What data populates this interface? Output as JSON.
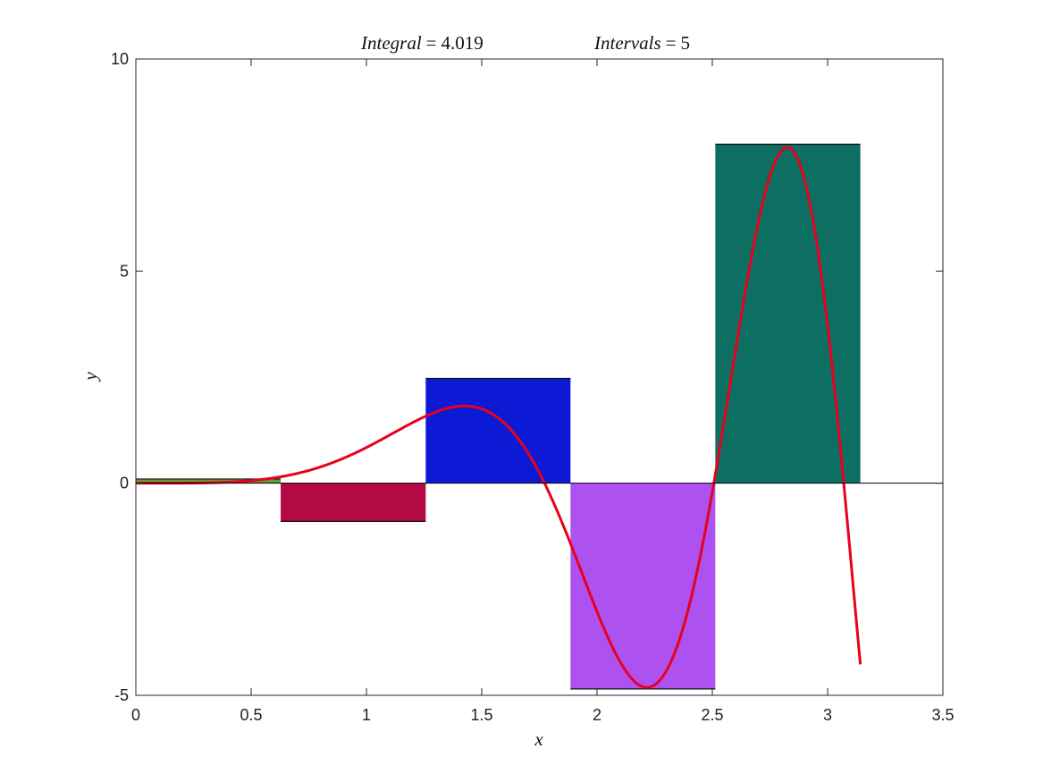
{
  "chart_data": {
    "type": "bar",
    "title_left": {
      "name": "Integral",
      "operator": "=",
      "value": "4.019"
    },
    "title_right": {
      "name": "Intervals",
      "operator": "=",
      "value": "5"
    },
    "xlabel": "x",
    "ylabel": "y",
    "xlim": [
      0,
      3.5
    ],
    "ylim": [
      -5,
      10
    ],
    "xticks": [
      0,
      0.5,
      1,
      1.5,
      2,
      2.5,
      3,
      3.5
    ],
    "xtick_labels": [
      "0",
      "0.5",
      "1",
      "1.5",
      "2",
      "2.5",
      "3",
      "3.5"
    ],
    "yticks": [
      -5,
      0,
      5,
      10
    ],
    "ytick_labels": [
      "-5",
      "0",
      "5",
      "10"
    ],
    "grid": false,
    "bars": [
      {
        "x0": 0.0,
        "x1": 0.628,
        "height": 0.1,
        "color": "#5c9e33"
      },
      {
        "x0": 0.628,
        "x1": 1.257,
        "height": -0.9,
        "color": "#b30a45"
      },
      {
        "x0": 1.257,
        "x1": 1.885,
        "height": 2.47,
        "color": "#0c1ad6"
      },
      {
        "x0": 1.885,
        "x1": 2.513,
        "height": -4.85,
        "color": "#ad52f0"
      },
      {
        "x0": 2.513,
        "x1": 3.142,
        "height": 7.99,
        "color": "#0d6e62"
      }
    ],
    "curve": {
      "color": "#e8001c",
      "formula": "x^2*sin(x^2)",
      "x_range": [
        0,
        3.142
      ]
    },
    "zero_line_color": "#000000"
  }
}
